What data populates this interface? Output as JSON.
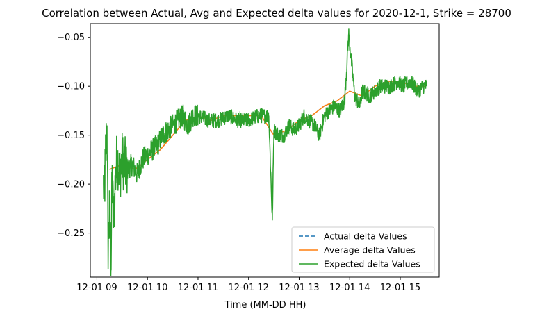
{
  "chart_data": {
    "type": "line",
    "title": "Correlation between Actual, Avg and Expected delta values for 2020-12-1, Strike = 28700",
    "xlabel": "Time (MM-DD HH)",
    "ylabel": "",
    "x_ticks": [
      "12-01 09",
      "12-01 10",
      "12-01 11",
      "12-01 12",
      "12-01 13",
      "12-01 14",
      "12-01 15"
    ],
    "y_ticks": [
      -0.25,
      -0.2,
      -0.15,
      -0.1,
      -0.05
    ],
    "y_tick_labels": [
      "−0.25",
      "−0.20",
      "−0.15",
      "−0.10",
      "−0.05"
    ],
    "xlim": [
      8.87,
      15.77
    ],
    "ylim": [
      -0.295,
      -0.036
    ],
    "grid": false,
    "legend_position": "lower right",
    "series": [
      {
        "name": "Actual delta Values",
        "color": "#1f77b4",
        "style": "dashed",
        "x": [
          9.25,
          9.5,
          9.75,
          10.0,
          10.25,
          10.5,
          10.75,
          11.0,
          11.25,
          11.5,
          11.75,
          12.0,
          12.25,
          12.5,
          12.75,
          13.0,
          13.25,
          13.5,
          13.75,
          14.0,
          14.25,
          14.5,
          14.75,
          15.0,
          15.25,
          15.5
        ],
        "y": [
          -0.185,
          -0.18,
          -0.185,
          -0.175,
          -0.165,
          -0.15,
          -0.135,
          -0.13,
          -0.135,
          -0.13,
          -0.13,
          -0.13,
          -0.13,
          -0.15,
          -0.145,
          -0.135,
          -0.13,
          -0.12,
          -0.115,
          -0.105,
          -0.11,
          -0.1,
          -0.095,
          -0.095,
          -0.1,
          -0.1
        ]
      },
      {
        "name": "Average delta Values",
        "color": "#ff7f0e",
        "style": "solid",
        "x": [
          9.25,
          9.5,
          9.75,
          10.0,
          10.25,
          10.5,
          10.75,
          11.0,
          11.25,
          11.5,
          11.75,
          12.0,
          12.25,
          12.5,
          12.75,
          13.0,
          13.25,
          13.5,
          13.75,
          14.0,
          14.25,
          14.5,
          14.75,
          15.0,
          15.25,
          15.5
        ],
        "y": [
          -0.185,
          -0.18,
          -0.185,
          -0.175,
          -0.165,
          -0.15,
          -0.135,
          -0.13,
          -0.135,
          -0.13,
          -0.13,
          -0.13,
          -0.13,
          -0.15,
          -0.145,
          -0.135,
          -0.13,
          -0.12,
          -0.115,
          -0.105,
          -0.11,
          -0.1,
          -0.095,
          -0.095,
          -0.1,
          -0.1
        ]
      },
      {
        "name": "Expected delta Values",
        "color": "#2ca02c",
        "style": "solid",
        "x": [
          9.13,
          9.15,
          9.17,
          9.2,
          9.22,
          9.25,
          9.28,
          9.3,
          9.33,
          9.36,
          9.4,
          9.45,
          9.5,
          9.6,
          9.7,
          9.8,
          9.9,
          10.0,
          10.1,
          10.2,
          10.3,
          10.4,
          10.5,
          10.6,
          10.7,
          10.8,
          10.9,
          11.0,
          11.2,
          11.4,
          11.6,
          11.8,
          12.0,
          12.2,
          12.4,
          12.47,
          12.5,
          12.6,
          12.7,
          12.8,
          12.9,
          13.0,
          13.1,
          13.2,
          13.3,
          13.4,
          13.5,
          13.6,
          13.7,
          13.8,
          13.9,
          13.98,
          14.1,
          14.2,
          14.25,
          14.4,
          14.6,
          14.8,
          14.95,
          15.05,
          15.2,
          15.35,
          15.45,
          15.52
        ],
        "y": [
          -0.2,
          -0.215,
          -0.17,
          -0.14,
          -0.265,
          -0.23,
          -0.28,
          -0.19,
          -0.24,
          -0.2,
          -0.17,
          -0.19,
          -0.175,
          -0.185,
          -0.18,
          -0.19,
          -0.175,
          -0.17,
          -0.165,
          -0.16,
          -0.15,
          -0.145,
          -0.14,
          -0.135,
          -0.13,
          -0.14,
          -0.13,
          -0.13,
          -0.135,
          -0.135,
          -0.13,
          -0.135,
          -0.135,
          -0.13,
          -0.13,
          -0.237,
          -0.145,
          -0.15,
          -0.15,
          -0.14,
          -0.145,
          -0.14,
          -0.13,
          -0.135,
          -0.14,
          -0.15,
          -0.13,
          -0.125,
          -0.12,
          -0.125,
          -0.115,
          -0.046,
          -0.11,
          -0.12,
          -0.105,
          -0.11,
          -0.1,
          -0.1,
          -0.095,
          -0.1,
          -0.095,
          -0.105,
          -0.1,
          -0.1
        ]
      }
    ]
  }
}
